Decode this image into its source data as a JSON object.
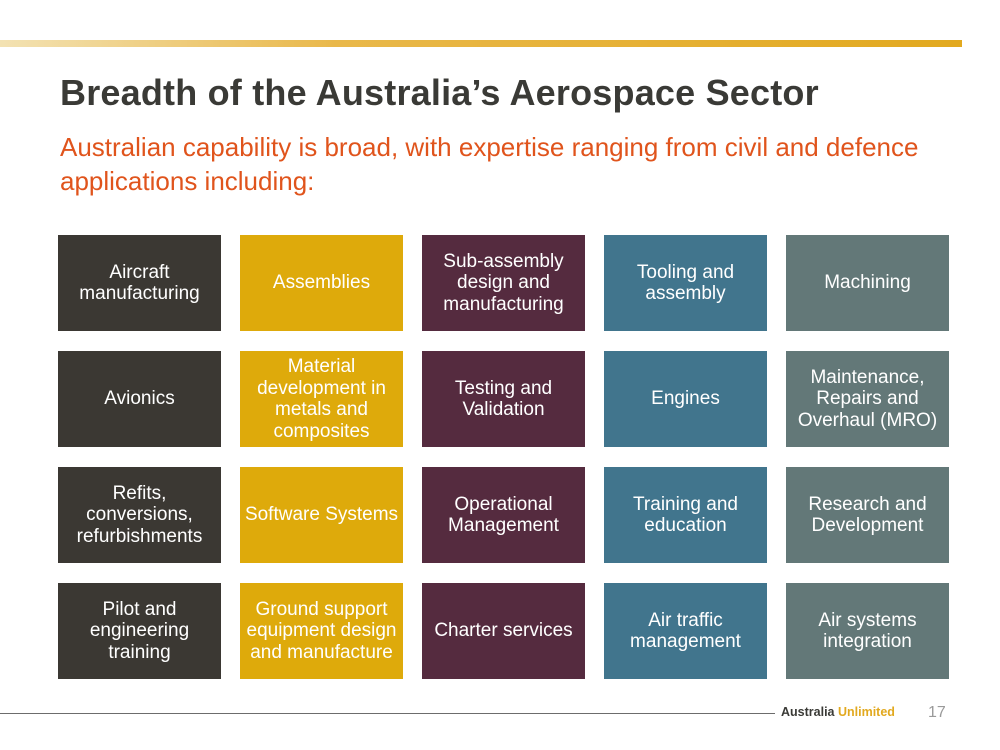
{
  "slide": {
    "title": "Breadth of the Australia’s Aerospace Sector",
    "subtitle": "Australian capability is broad, with expertise ranging from civil and defence applications including:"
  },
  "colors": {
    "accent_bar": "#e2a91f",
    "subtitle": "#e0541c",
    "column_colors": [
      "#3b3833",
      "#deaa0b",
      "#552b3f",
      "#41758d",
      "#637878"
    ]
  },
  "grid": {
    "rows": [
      [
        "Aircraft manufacturing",
        "Assemblies",
        "Sub-assembly design and manufacturing",
        "Tooling and assembly",
        "Machining"
      ],
      [
        "Avionics",
        "Material development in metals and composites",
        "Testing and Validation",
        "Engines",
        "Maintenance, Repairs and Overhaul (MRO)"
      ],
      [
        "Refits, conversions, refurbishments",
        "Software Systems",
        "Operational Management",
        "Training and education",
        "Research and Development"
      ],
      [
        "Pilot and engineering training",
        "Ground support equipment design and manufacture",
        "Charter services",
        "Air traffic management",
        "Air systems integration"
      ]
    ]
  },
  "footer": {
    "brand_part1": "Australia",
    "brand_part2": "Unlimited",
    "page_number": "17"
  }
}
